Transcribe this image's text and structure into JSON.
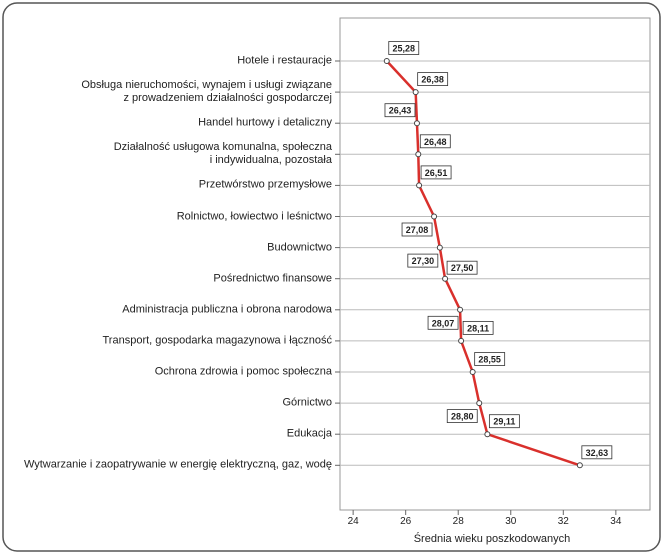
{
  "chart_data": {
    "type": "line",
    "categories": [
      "Hotele i restauracje",
      "Obsługa nieruchomości, wynajem i usługi związane\nz prowadzeniem działalności gospodarczej",
      "Handel hurtowy i detaliczny",
      "Działalność usługowa komunalna, społeczna\ni indywidualna, pozostała",
      "Przetwórstwo przemysłowe",
      "Rolnictwo, łowiectwo i leśnictwo",
      "Budownictwo",
      "Pośrednictwo finansowe",
      "Administracja publiczna i obrona narodowa",
      "Transport, gospodarka magazynowa i łączność",
      "Ochrona zdrowia i pomoc społeczna",
      "Górnictwo",
      "Edukacja",
      "Wytwarzanie i zaopatrywanie w energię elektryczną, gaz, wodę"
    ],
    "values": [
      25.28,
      26.38,
      26.43,
      26.48,
      26.51,
      27.08,
      27.3,
      27.5,
      28.07,
      28.11,
      28.55,
      28.8,
      29.11,
      32.63
    ],
    "value_labels": [
      "25,28",
      "26,38",
      "26,43",
      "26,48",
      "26,51",
      "27,08",
      "27,30",
      "27,50",
      "28,07",
      "28,11",
      "28,55",
      "28,80",
      "29,11",
      "32,63"
    ],
    "color": "#d9302c",
    "xlim": [
      23.5,
      35.3
    ],
    "xticks": [
      24,
      26,
      28,
      30,
      32,
      34
    ],
    "xlabel": "Średnia wieku poszkodowanych",
    "grid": true
  }
}
